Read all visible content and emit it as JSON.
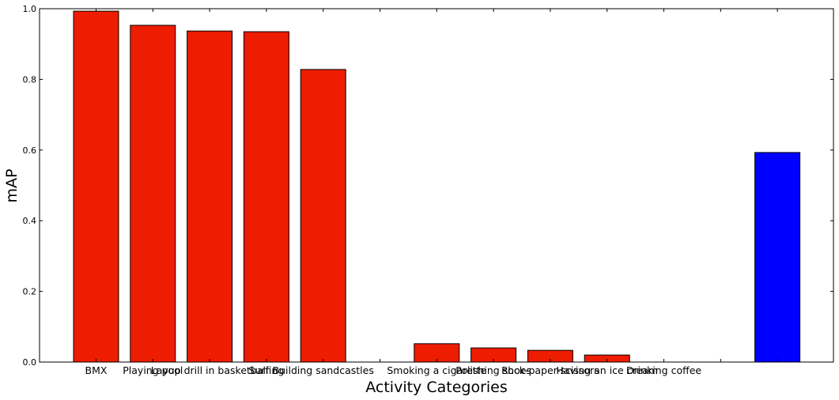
{
  "chart_data": {
    "type": "bar",
    "xlabel": "Activity Categories",
    "ylabel": "mAP",
    "ylim": [
      0,
      1.0
    ],
    "yticks": [
      "0.0",
      "0.2",
      "0.4",
      "0.6",
      "0.8",
      "1.0"
    ],
    "grid": false,
    "categories": [
      "BMX",
      "Playing pool",
      "Layup drill in basketball",
      "Surfing",
      "Building sandcastles",
      "",
      "Smoking a cigarette",
      "Polishing shoes",
      "Rock-paper-scissors",
      "Having an ice cream",
      "Drinking coffee",
      "",
      ""
    ],
    "values": [
      0.993,
      0.953,
      0.937,
      0.935,
      0.828,
      null,
      0.052,
      0.04,
      0.033,
      0.02,
      0.0,
      null,
      0.593
    ],
    "colors": [
      "#ee1c00",
      "#ee1c00",
      "#ee1c00",
      "#ee1c00",
      "#ee1c00",
      "#ee1c00",
      "#ee1c00",
      "#ee1c00",
      "#ee1c00",
      "#ee1c00",
      "#ee1c00",
      "#ee1c00",
      "#0000ff"
    ]
  }
}
